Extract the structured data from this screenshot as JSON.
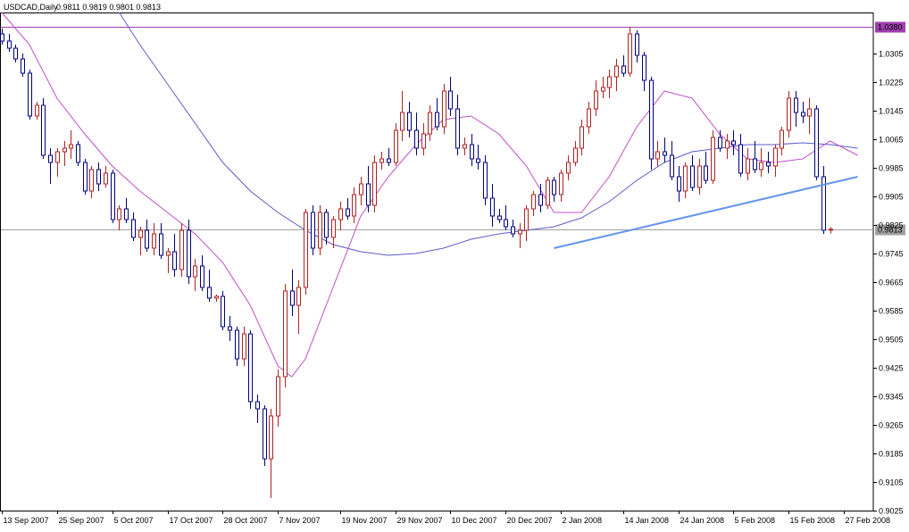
{
  "chart_data": {
    "type": "candlestick",
    "title": "USDCAD,Daily",
    "ohlc_readout": "0.9811 0.9819 0.9801 0.9813",
    "ylim": [
      0.9025,
      1.042
    ],
    "y_ticks": [
      "1.0305",
      "1.0225",
      "1.0145",
      "1.0065",
      "0.9985",
      "0.9905",
      "0.9825",
      "0.9745",
      "0.9665",
      "0.9585",
      "0.9505",
      "0.9425",
      "0.9345",
      "0.9265",
      "0.9185",
      "0.9105",
      "0.9025"
    ],
    "x_labels": [
      {
        "label": "13 Sep 2007",
        "index": 0
      },
      {
        "label": "25 Sep 2007",
        "index": 8
      },
      {
        "label": "5 Oct 2007",
        "index": 16
      },
      {
        "label": "17 Oct 2007",
        "index": 24
      },
      {
        "label": "28 Oct 2007",
        "index": 32
      },
      {
        "label": "7 Nov 2007",
        "index": 40
      },
      {
        "label": "19 Nov 2007",
        "index": 49
      },
      {
        "label": "29 Nov 2007",
        "index": 57
      },
      {
        "label": "10 Dec 2007",
        "index": 65
      },
      {
        "label": "20 Dec 2007",
        "index": 73
      },
      {
        "label": "2 Jan 2008",
        "index": 81
      },
      {
        "label": "14 Jan 2008",
        "index": 90
      },
      {
        "label": "24 Jan 2008",
        "index": 98
      },
      {
        "label": "5 Feb 2008",
        "index": 106
      },
      {
        "label": "15 Feb 2008",
        "index": 114
      },
      {
        "label": "27 Feb 2008",
        "index": 122
      }
    ],
    "horizontal_lines": [
      {
        "value": 1.038,
        "label": "1.0380",
        "color": "#a040b0"
      },
      {
        "value": 0.9813,
        "label": "0.9813",
        "color": "#a0a0a0"
      }
    ],
    "trendline": {
      "start": {
        "index": 80,
        "value": 0.976
      },
      "end": {
        "index": 124,
        "value": 0.996
      },
      "color": "#6495ed"
    },
    "ma_fast": [
      [
        0,
        1.042
      ],
      [
        4,
        1.033
      ],
      [
        8,
        1.018
      ],
      [
        12,
        1.008
      ],
      [
        16,
        0.999
      ],
      [
        20,
        0.992
      ],
      [
        24,
        0.986
      ],
      [
        28,
        0.98
      ],
      [
        32,
        0.972
      ],
      [
        36,
        0.96
      ],
      [
        40,
        0.943
      ],
      [
        42,
        0.94
      ],
      [
        44,
        0.945
      ],
      [
        48,
        0.965
      ],
      [
        52,
        0.985
      ],
      [
        56,
        0.996
      ],
      [
        60,
        1.005
      ],
      [
        64,
        1.012
      ],
      [
        68,
        1.013
      ],
      [
        72,
        1.008
      ],
      [
        76,
        0.999
      ],
      [
        80,
        0.986
      ],
      [
        84,
        0.986
      ],
      [
        88,
        0.996
      ],
      [
        92,
        1.01
      ],
      [
        96,
        1.02
      ],
      [
        100,
        1.018
      ],
      [
        104,
        1.008
      ],
      [
        108,
        1.001
      ],
      [
        112,
        1.0
      ],
      [
        116,
        1.001
      ],
      [
        120,
        1.006
      ],
      [
        124,
        1.002
      ]
    ],
    "ma_slow": [
      [
        17,
        1.042
      ],
      [
        20,
        1.033
      ],
      [
        24,
        1.022
      ],
      [
        28,
        1.011
      ],
      [
        32,
        1.0
      ],
      [
        36,
        0.992
      ],
      [
        40,
        0.986
      ],
      [
        44,
        0.981
      ],
      [
        48,
        0.977
      ],
      [
        52,
        0.975
      ],
      [
        56,
        0.974
      ],
      [
        60,
        0.9745
      ],
      [
        64,
        0.976
      ],
      [
        68,
        0.9785
      ],
      [
        72,
        0.98
      ],
      [
        76,
        0.981
      ],
      [
        80,
        0.982
      ],
      [
        84,
        0.9845
      ],
      [
        88,
        0.989
      ],
      [
        92,
        0.995
      ],
      [
        96,
        1.0
      ],
      [
        100,
        1.003
      ],
      [
        104,
        1.004
      ],
      [
        108,
        1.005
      ],
      [
        112,
        1.005
      ],
      [
        116,
        1.0055
      ],
      [
        120,
        1.005
      ],
      [
        124,
        1.004
      ]
    ],
    "candles": [
      [
        1.036,
        1.0375,
        1.033,
        1.034
      ],
      [
        1.034,
        1.036,
        1.031,
        1.032
      ],
      [
        1.032,
        1.033,
        1.028,
        1.029
      ],
      [
        1.029,
        1.0305,
        1.024,
        1.025
      ],
      [
        1.025,
        1.026,
        1.012,
        1.013
      ],
      [
        1.013,
        1.017,
        1.012,
        1.016
      ],
      [
        1.016,
        1.018,
        1.001,
        1.002
      ],
      [
        1.002,
        1.004,
        0.994,
        1.0
      ],
      [
        1.0,
        1.004,
        0.996,
        1.003
      ],
      [
        1.003,
        1.006,
        0.999,
        1.004
      ],
      [
        1.004,
        1.009,
        1.001,
        1.005
      ],
      [
        1.005,
        1.006,
        0.999,
        1.0
      ],
      [
        1.0,
        1.001,
        0.991,
        0.992
      ],
      [
        0.992,
        0.999,
        0.99,
        0.998
      ],
      [
        0.998,
        1.0,
        0.992,
        0.994
      ],
      [
        0.994,
        0.999,
        0.993,
        0.997
      ],
      [
        0.997,
        0.998,
        0.983,
        0.984
      ],
      [
        0.984,
        0.988,
        0.981,
        0.987
      ],
      [
        0.987,
        0.99,
        0.983,
        0.984
      ],
      [
        0.984,
        0.986,
        0.978,
        0.979
      ],
      [
        0.979,
        0.982,
        0.974,
        0.981
      ],
      [
        0.981,
        0.984,
        0.975,
        0.976
      ],
      [
        0.976,
        0.983,
        0.974,
        0.98
      ],
      [
        0.98,
        0.983,
        0.973,
        0.974
      ],
      [
        0.974,
        0.976,
        0.969,
        0.975
      ],
      [
        0.975,
        0.98,
        0.968,
        0.97
      ],
      [
        0.97,
        0.983,
        0.968,
        0.981
      ],
      [
        0.981,
        0.984,
        0.966,
        0.968
      ],
      [
        0.968,
        0.973,
        0.964,
        0.971
      ],
      [
        0.971,
        0.974,
        0.964,
        0.965
      ],
      [
        0.965,
        0.97,
        0.961,
        0.962
      ],
      [
        0.962,
        0.963,
        0.961,
        0.9625
      ],
      [
        0.9625,
        0.964,
        0.953,
        0.954
      ],
      [
        0.954,
        0.957,
        0.95,
        0.953
      ],
      [
        0.953,
        0.954,
        0.943,
        0.945
      ],
      [
        0.945,
        0.954,
        0.943,
        0.952
      ],
      [
        0.952,
        0.953,
        0.931,
        0.933
      ],
      [
        0.933,
        0.935,
        0.927,
        0.931
      ],
      [
        0.931,
        0.932,
        0.915,
        0.917
      ],
      [
        0.917,
        0.931,
        0.906,
        0.929
      ],
      [
        0.929,
        0.942,
        0.926,
        0.94
      ],
      [
        0.94,
        0.966,
        0.937,
        0.964
      ],
      [
        0.964,
        0.97,
        0.957,
        0.96
      ],
      [
        0.96,
        0.967,
        0.952,
        0.965
      ],
      [
        0.965,
        0.987,
        0.963,
        0.986
      ],
      [
        0.986,
        0.988,
        0.974,
        0.976
      ],
      [
        0.976,
        0.988,
        0.974,
        0.986
      ],
      [
        0.986,
        0.987,
        0.977,
        0.979
      ],
      [
        0.979,
        0.985,
        0.976,
        0.984
      ],
      [
        0.984,
        0.989,
        0.981,
        0.987
      ],
      [
        0.987,
        0.99,
        0.984,
        0.985
      ],
      [
        0.985,
        0.993,
        0.983,
        0.991
      ],
      [
        0.991,
        0.996,
        0.988,
        0.994
      ],
      [
        0.994,
        0.999,
        0.986,
        0.988
      ],
      [
        0.988,
        1.002,
        0.986,
        1.0
      ],
      [
        1.0,
        1.003,
        0.998,
        1.001
      ],
      [
        1.001,
        1.004,
        0.999,
        1.0
      ],
      [
        1.0,
        1.011,
        0.999,
        1.009
      ],
      [
        1.009,
        1.02,
        1.006,
        1.014
      ],
      [
        1.014,
        1.017,
        1.007,
        1.009
      ],
      [
        1.009,
        1.014,
        1.002,
        1.004
      ],
      [
        1.004,
        1.011,
        1.002,
        1.008
      ],
      [
        1.008,
        1.016,
        1.006,
        1.014
      ],
      [
        1.014,
        1.018,
        1.009,
        1.01
      ],
      [
        1.01,
        1.022,
        1.008,
        1.02
      ],
      [
        1.02,
        1.024,
        1.013,
        1.015
      ],
      [
        1.015,
        1.019,
        1.002,
        1.004
      ],
      [
        1.004,
        1.007,
        1.002,
        1.005
      ],
      [
        1.005,
        1.008,
        0.999,
        1.001
      ],
      [
        1.001,
        1.005,
        0.998,
        1.0
      ],
      [
        1.0,
        1.002,
        0.988,
        0.99
      ],
      [
        0.99,
        0.994,
        0.982,
        0.985
      ],
      [
        0.985,
        0.987,
        0.983,
        0.984
      ],
      [
        0.984,
        0.988,
        0.981,
        0.982
      ],
      [
        0.982,
        0.984,
        0.979,
        0.98
      ],
      [
        0.98,
        0.983,
        0.976,
        0.981
      ],
      [
        0.981,
        0.988,
        0.978,
        0.987
      ],
      [
        0.987,
        0.992,
        0.985,
        0.991
      ],
      [
        0.991,
        0.994,
        0.986,
        0.988
      ],
      [
        0.988,
        0.996,
        0.987,
        0.995
      ],
      [
        0.995,
        0.996,
        0.989,
        0.991
      ],
      [
        0.991,
        0.998,
        0.989,
        0.997
      ],
      [
        0.997,
        1.002,
        0.995,
        1.0
      ],
      [
        1.0,
        1.006,
        0.999,
        1.004
      ],
      [
        1.004,
        1.012,
        1.002,
        1.01
      ],
      [
        1.01,
        1.017,
        1.008,
        1.015
      ],
      [
        1.015,
        1.023,
        1.013,
        1.02
      ],
      [
        1.02,
        1.024,
        1.018,
        1.021
      ],
      [
        1.021,
        1.026,
        1.018,
        1.024
      ],
      [
        1.024,
        1.029,
        1.02,
        1.027
      ],
      [
        1.027,
        1.03,
        1.024,
        1.025
      ],
      [
        1.025,
        1.038,
        1.024,
        1.036
      ],
      [
        1.036,
        1.037,
        1.028,
        1.03
      ],
      [
        1.03,
        1.031,
        1.02,
        1.023
      ],
      [
        1.023,
        1.024,
        0.998,
        1.001
      ],
      [
        1.001,
        1.006,
        0.999,
        1.003
      ],
      [
        1.003,
        1.007,
        1.0,
        1.002
      ],
      [
        1.002,
        1.006,
        0.995,
        0.996
      ],
      [
        0.996,
        0.999,
        0.989,
        0.992
      ],
      [
        0.992,
        1.0,
        0.99,
        0.999
      ],
      [
        0.999,
        1.002,
        0.992,
        0.993
      ],
      [
        0.993,
        1.001,
        0.991,
        0.999
      ],
      [
        0.999,
        1.003,
        0.994,
        0.995
      ],
      [
        0.995,
        1.009,
        0.994,
        1.007
      ],
      [
        1.007,
        1.009,
        1.003,
        1.004
      ],
      [
        1.004,
        1.008,
        1.001,
        1.006
      ],
      [
        1.006,
        1.009,
        1.002,
        1.005
      ],
      [
        1.005,
        1.008,
        0.996,
        0.997
      ],
      [
        0.997,
        1.004,
        0.995,
        1.001
      ],
      [
        1.001,
        1.006,
        0.997,
        0.998
      ],
      [
        0.998,
        1.004,
        0.996,
        1.0
      ],
      [
        1.0,
        1.003,
        0.997,
        0.999
      ],
      [
        0.999,
        1.005,
        0.996,
        1.004
      ],
      [
        1.004,
        1.01,
        1.002,
        1.009
      ],
      [
        1.009,
        1.02,
        1.007,
        1.018
      ],
      [
        1.018,
        1.02,
        1.01,
        1.014
      ],
      [
        1.014,
        1.017,
        1.011,
        1.013
      ],
      [
        1.013,
        1.018,
        1.008,
        1.015
      ],
      [
        1.015,
        1.016,
        0.995,
        0.996
      ],
      [
        0.996,
        0.999,
        0.98,
        0.981
      ],
      [
        0.9811,
        0.9819,
        0.9801,
        0.9813
      ]
    ]
  }
}
